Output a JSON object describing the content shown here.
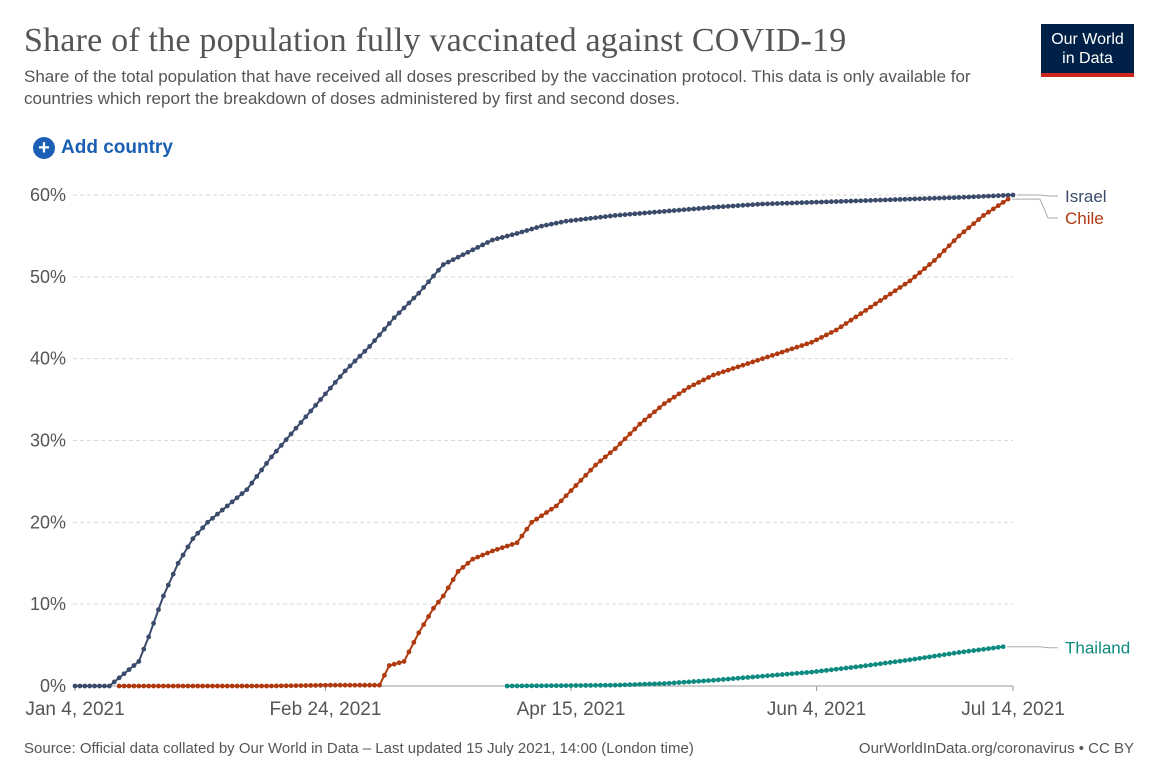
{
  "header": {
    "title": "Share of the population fully vaccinated against COVID-19",
    "subtitle": "Share of the total population that have received all doses prescribed by the vaccination protocol. This data is only available for countries which report the breakdown of doses administered by first and second doses.",
    "logo_line1": "Our World",
    "logo_line2": "in Data"
  },
  "controls": {
    "add_country_label": "Add country"
  },
  "footer": {
    "source": "Source: Official data collated by Our World in Data – Last updated 15 July 2021, 14:00 (London time)",
    "license": "OurWorldInData.org/coronavirus • CC BY"
  },
  "colors": {
    "israel": "#3b4b6b",
    "chile": "#b03a0f",
    "thailand": "#0e8a80",
    "grid": "#d9d9d9",
    "text": "#555555"
  },
  "chart_data": {
    "type": "line",
    "title": "Share of the population fully vaccinated against COVID-19",
    "x_start": "2021-01-04",
    "x_end": "2021-07-14",
    "xticks": [
      {
        "day": 0,
        "label": "Jan 4, 2021"
      },
      {
        "day": 51,
        "label": "Feb 24, 2021"
      },
      {
        "day": 101,
        "label": "Apr 15, 2021"
      },
      {
        "day": 151,
        "label": "Jun 4, 2021"
      },
      {
        "day": 191,
        "label": "Jul 14, 2021"
      }
    ],
    "ylim": [
      0,
      60
    ],
    "yticks": [
      0,
      10,
      20,
      30,
      40,
      50,
      60
    ],
    "ytick_labels": [
      "0%",
      "10%",
      "20%",
      "30%",
      "40%",
      "50%",
      "60%"
    ],
    "grid": true,
    "legend": "right, labels at line ends",
    "series": [
      {
        "name": "Israel",
        "color": "#3b4b6b",
        "points": [
          [
            0,
            0
          ],
          [
            7,
            0
          ],
          [
            10,
            1.5
          ],
          [
            13,
            3
          ],
          [
            15,
            6
          ],
          [
            18,
            11
          ],
          [
            21,
            15
          ],
          [
            24,
            18
          ],
          [
            27,
            20
          ],
          [
            30,
            21.5
          ],
          [
            35,
            24
          ],
          [
            40,
            28
          ],
          [
            45,
            31.5
          ],
          [
            50,
            35
          ],
          [
            55,
            38.5
          ],
          [
            60,
            41.5
          ],
          [
            65,
            45
          ],
          [
            70,
            48
          ],
          [
            75,
            51.5
          ],
          [
            80,
            53
          ],
          [
            85,
            54.5
          ],
          [
            90,
            55.3
          ],
          [
            95,
            56.2
          ],
          [
            100,
            56.8
          ],
          [
            110,
            57.5
          ],
          [
            120,
            58
          ],
          [
            130,
            58.5
          ],
          [
            140,
            58.9
          ],
          [
            150,
            59.1
          ],
          [
            160,
            59.3
          ],
          [
            170,
            59.5
          ],
          [
            180,
            59.7
          ],
          [
            191,
            60
          ]
        ]
      },
      {
        "name": "Chile",
        "color": "#b03a0f",
        "points": [
          [
            9,
            0
          ],
          [
            40,
            0
          ],
          [
            52,
            0.1
          ],
          [
            62,
            0.1
          ],
          [
            64,
            2.5
          ],
          [
            67,
            3
          ],
          [
            70,
            6.5
          ],
          [
            73,
            9.5
          ],
          [
            75,
            11
          ],
          [
            78,
            14
          ],
          [
            81,
            15.5
          ],
          [
            85,
            16.5
          ],
          [
            90,
            17.5
          ],
          [
            93,
            20
          ],
          [
            98,
            22
          ],
          [
            102,
            24.5
          ],
          [
            106,
            27
          ],
          [
            110,
            29
          ],
          [
            115,
            32
          ],
          [
            120,
            34.5
          ],
          [
            125,
            36.5
          ],
          [
            130,
            38
          ],
          [
            135,
            39
          ],
          [
            140,
            40
          ],
          [
            145,
            41
          ],
          [
            150,
            42
          ],
          [
            155,
            43.5
          ],
          [
            160,
            45.5
          ],
          [
            165,
            47.5
          ],
          [
            170,
            49.5
          ],
          [
            175,
            52
          ],
          [
            180,
            55
          ],
          [
            185,
            57.5
          ],
          [
            190,
            59.5
          ]
        ]
      },
      {
        "name": "Thailand",
        "color": "#0e8a80",
        "points": [
          [
            88,
            0
          ],
          [
            100,
            0.05
          ],
          [
            110,
            0.1
          ],
          [
            120,
            0.3
          ],
          [
            130,
            0.7
          ],
          [
            140,
            1.2
          ],
          [
            150,
            1.7
          ],
          [
            160,
            2.4
          ],
          [
            170,
            3.2
          ],
          [
            180,
            4.1
          ],
          [
            189,
            4.8
          ]
        ]
      }
    ],
    "end_labels": [
      "Israel",
      "Chile",
      "Thailand"
    ]
  }
}
